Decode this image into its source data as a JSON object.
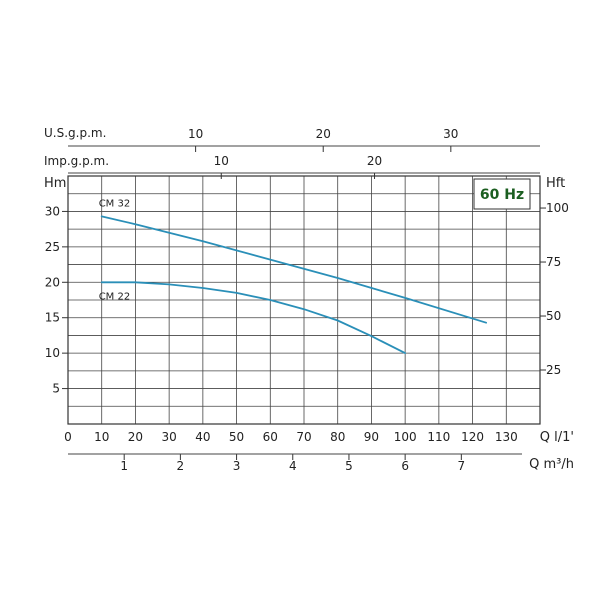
{
  "chart_data": {
    "type": "line",
    "badge": "60 Hz",
    "series": [
      {
        "name": "CM 32",
        "x": [
          10,
          20,
          40,
          60,
          80,
          100,
          124
        ],
        "y": [
          29.3,
          28.2,
          25.8,
          23.2,
          20.6,
          17.8,
          14.3
        ]
      },
      {
        "name": "CM 22",
        "x": [
          10,
          20,
          30,
          40,
          50,
          60,
          70,
          80,
          90,
          100
        ],
        "y": [
          20.0,
          20.0,
          19.7,
          19.2,
          18.5,
          17.5,
          16.2,
          14.6,
          12.4,
          10.0
        ]
      }
    ],
    "colors": {
      "curve": "#2a8fb8",
      "grid": "#444444",
      "badge_text": "#1b5e20"
    },
    "axes": {
      "left": {
        "title": "Hm",
        "range": [
          0,
          35
        ],
        "ticks": [
          "5",
          "10",
          "15",
          "20",
          "25",
          "30"
        ],
        "tick_values": [
          5,
          10,
          15,
          20,
          25,
          30
        ]
      },
      "right": {
        "title": "Hft",
        "ticks": [
          "25",
          "50",
          "75",
          "100"
        ],
        "tick_values": [
          25,
          50,
          75,
          100
        ]
      },
      "bottom_primary": {
        "unit": "Q  l/1'",
        "range": [
          0,
          140
        ],
        "ticks": [
          "0",
          "10",
          "20",
          "30",
          "40",
          "50",
          "60",
          "70",
          "80",
          "90",
          "100",
          "110",
          "120",
          "130"
        ],
        "tick_values": [
          0,
          10,
          20,
          30,
          40,
          50,
          60,
          70,
          80,
          90,
          100,
          110,
          120,
          130
        ]
      },
      "bottom_secondary": {
        "unit": "Q  m³/h",
        "ticks": [
          "1",
          "2",
          "3",
          "4",
          "5",
          "6",
          "7"
        ],
        "tick_values": [
          1,
          2,
          3,
          4,
          5,
          6,
          7
        ]
      },
      "top_usgpm": {
        "title": "U.S.g.p.m.",
        "ticks": [
          "10",
          "20",
          "30"
        ],
        "tick_values": [
          10,
          20,
          30
        ]
      },
      "top_impgpm": {
        "title": "Imp.g.p.m.",
        "ticks": [
          "10",
          "20"
        ],
        "tick_values": [
          10,
          20
        ]
      }
    },
    "grid": true
  }
}
